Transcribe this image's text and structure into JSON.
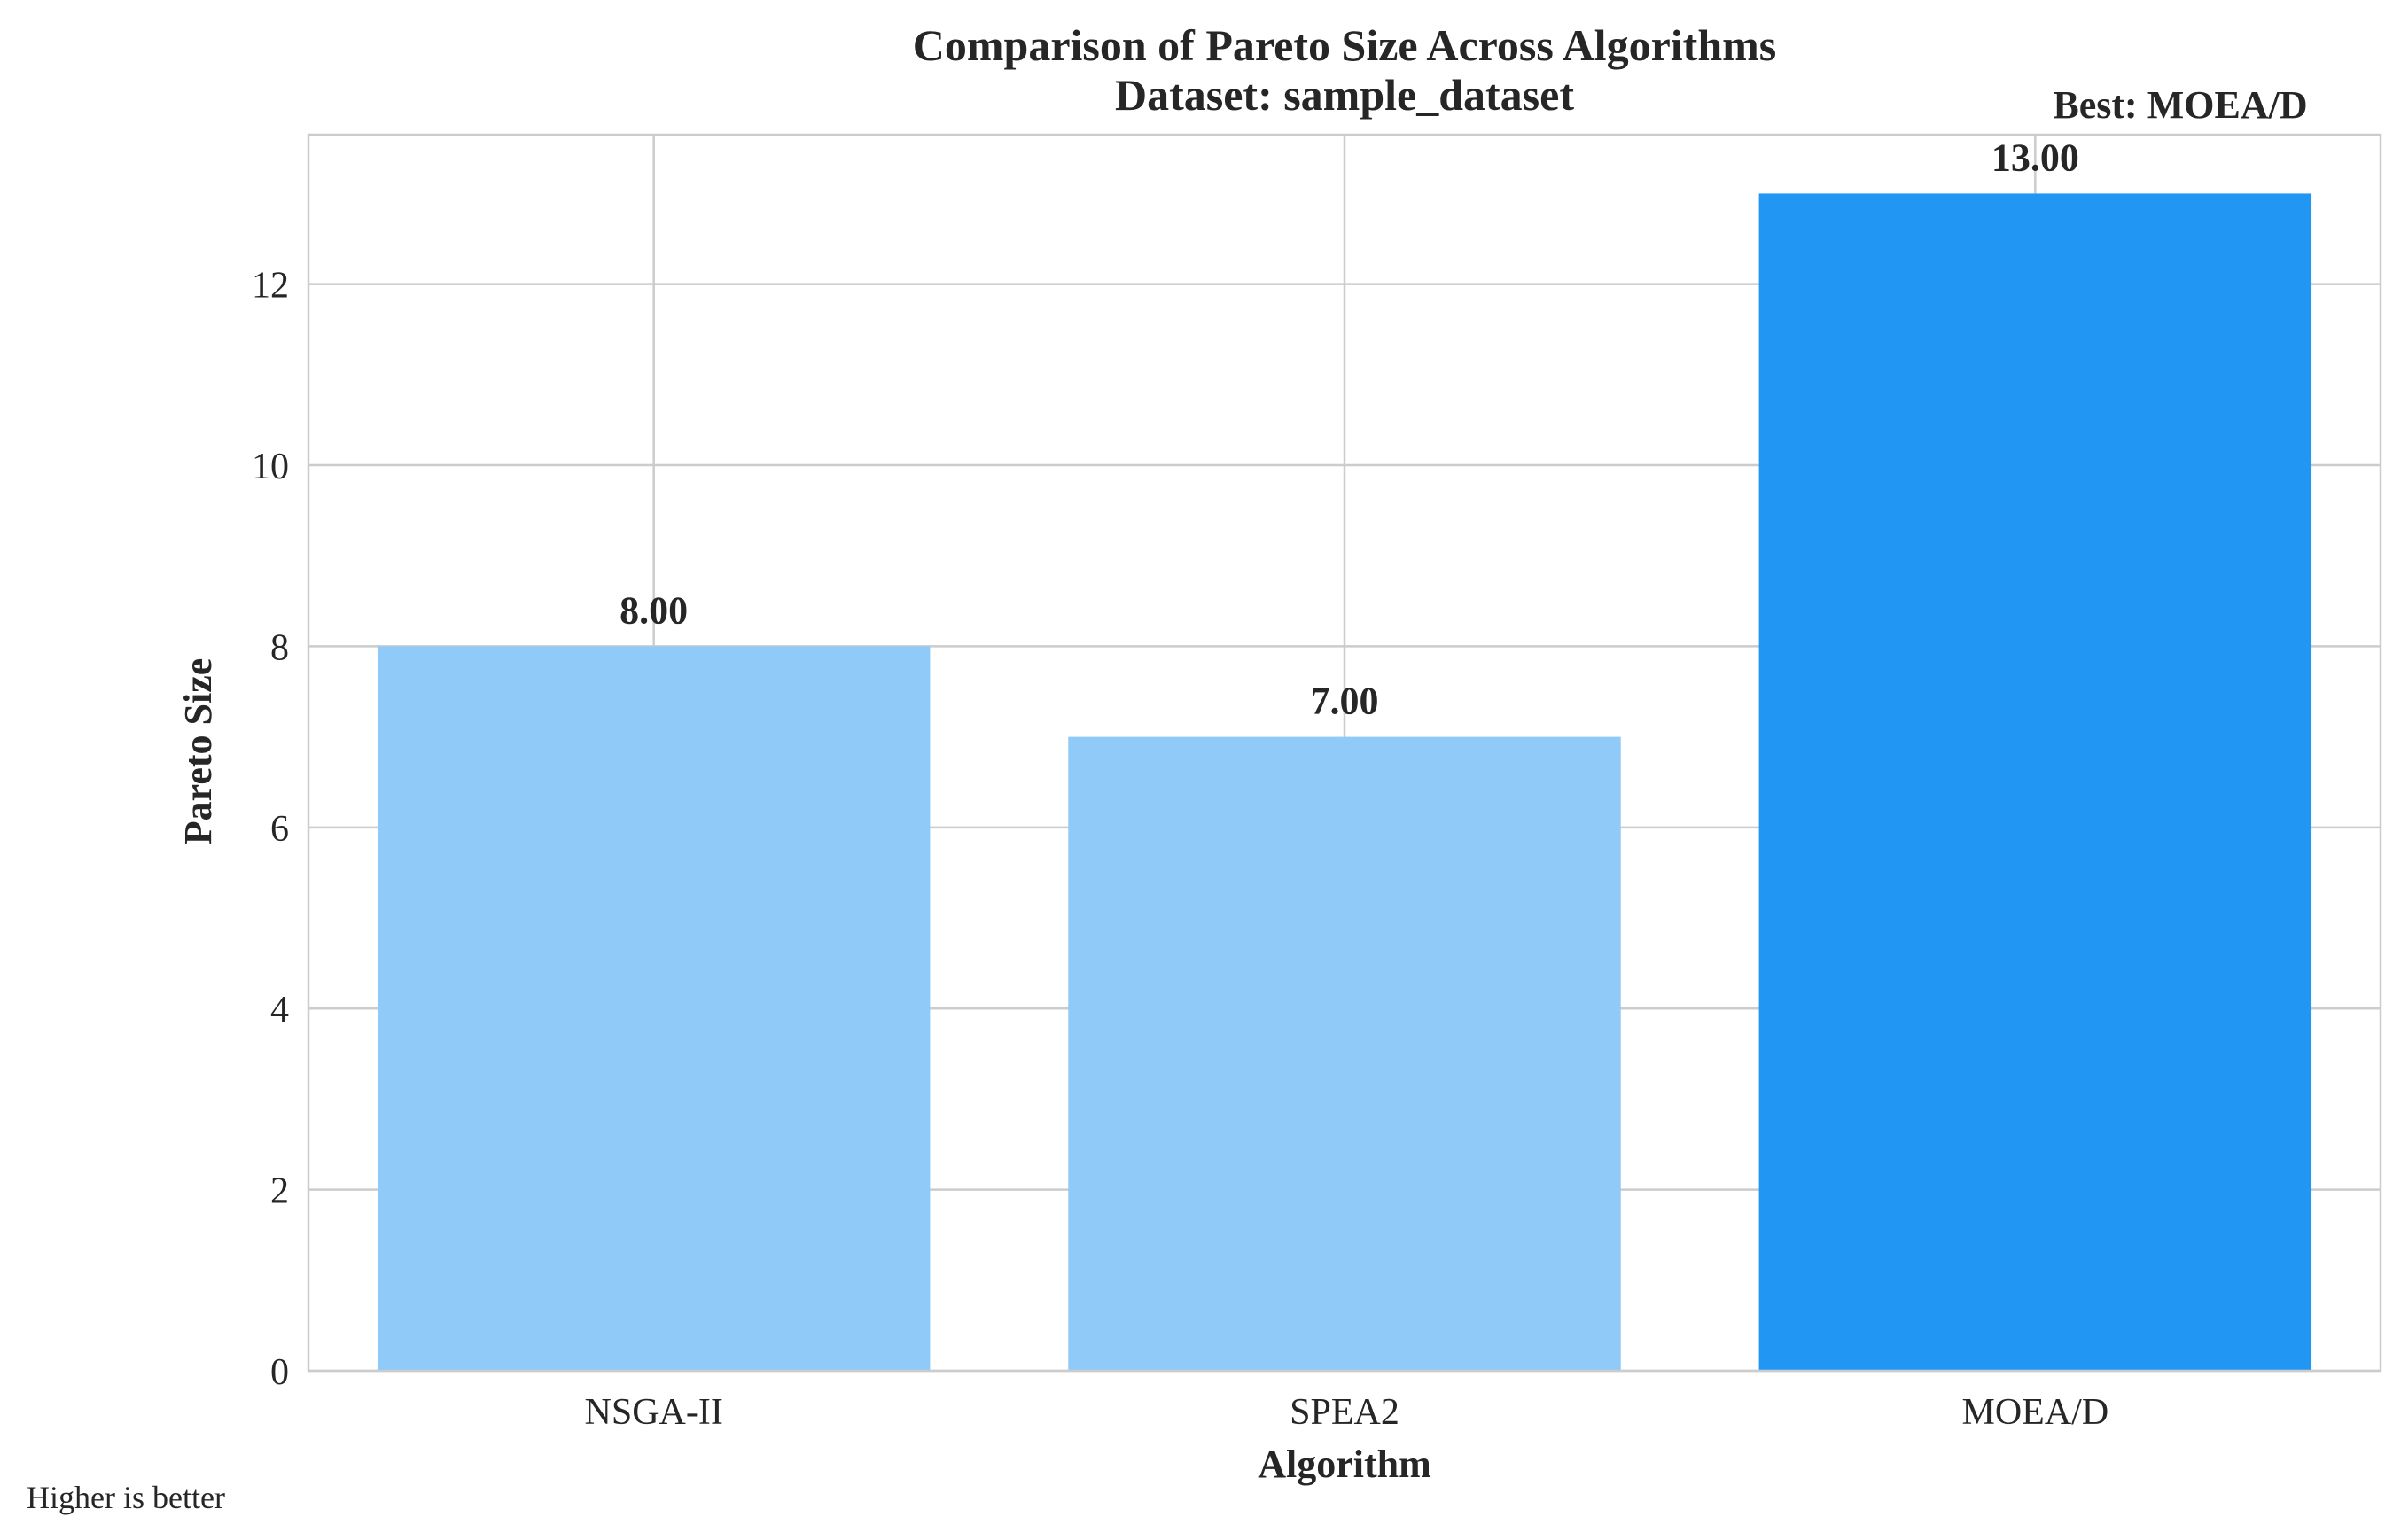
{
  "chart_data": {
    "type": "bar",
    "title": "Comparison of Pareto Size Across Algorithms",
    "subtitle": "Dataset: sample_dataset",
    "xlabel": "Algorithm",
    "ylabel": "Pareto Size",
    "categories": [
      "NSGA-II",
      "SPEA2",
      "MOEA/D"
    ],
    "values": [
      8,
      7,
      13
    ],
    "value_labels": [
      "8.00",
      "7.00",
      "13.00"
    ],
    "colors": [
      "#90caf9",
      "#90caf9",
      "#2196f3"
    ],
    "ylim": [
      0,
      13.65
    ],
    "yticks": [
      0,
      2,
      4,
      6,
      8,
      10,
      12
    ],
    "grid": true,
    "annotation": "Best: MOEA/D",
    "footnote": "Higher is better"
  }
}
